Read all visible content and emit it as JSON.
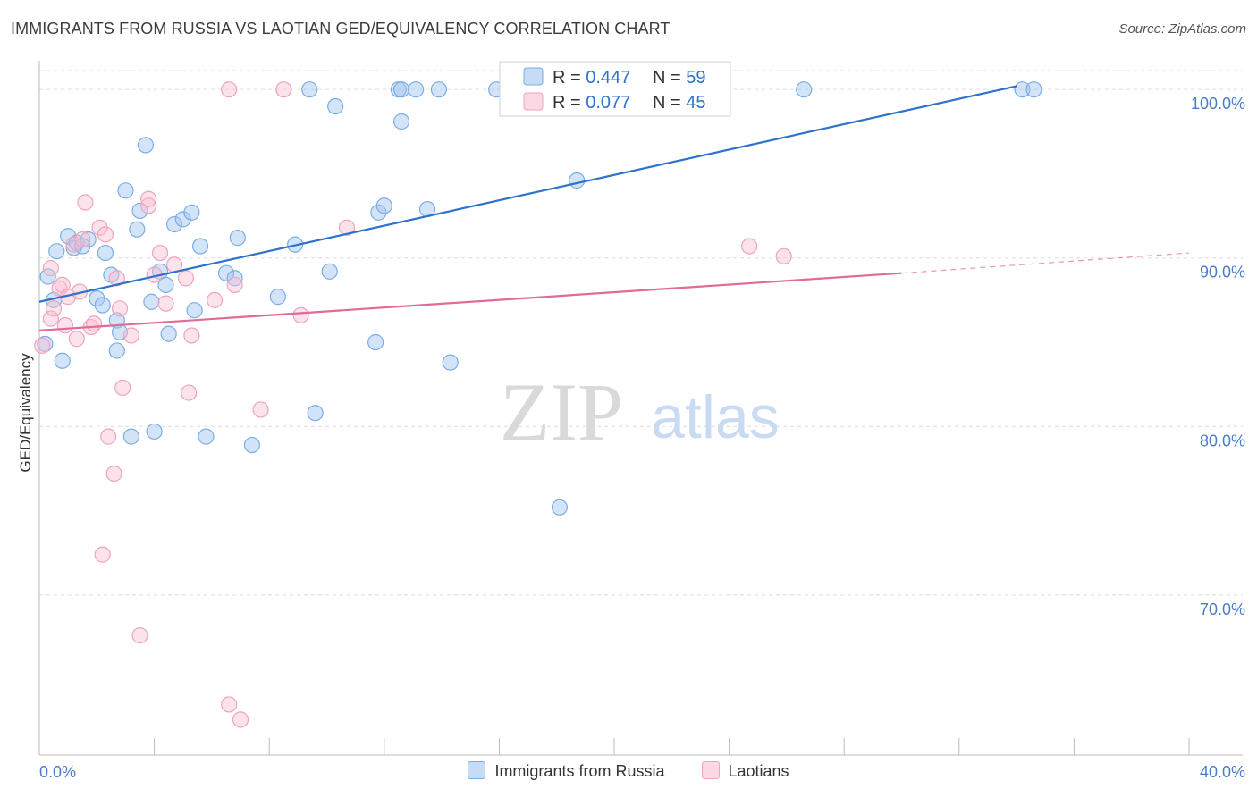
{
  "title": "IMMIGRANTS FROM RUSSIA VS LAOTIAN GED/EQUIVALENCY CORRELATION CHART",
  "source": "Source: ZipAtlas.com",
  "watermark": {
    "part1": "ZIP",
    "part2": "atlas"
  },
  "colors": {
    "blue": "#7aaee3",
    "blue_fill": "rgba(160,196,240,0.45)",
    "blue_line": "#2e72cc",
    "pink": "#eea4bd",
    "pink_fill": "rgba(248,190,210,0.45)",
    "pink_line": "#e06b98",
    "axis_label": "#4a7cc7",
    "grid": "#dddddd"
  },
  "legend": {
    "rows": [
      {
        "r_label": "R = ",
        "r_value": "0.447",
        "n_label": "N = ",
        "n_value": "59",
        "series": "blue"
      },
      {
        "r_label": "R = ",
        "r_value": "0.077",
        "n_label": "N = ",
        "n_value": "45",
        "series": "pink"
      }
    ]
  },
  "bottom_legend": [
    "Immigrants from Russia",
    "Laotians"
  ],
  "chart_data": {
    "type": "scatter",
    "title": "IMMIGRANTS FROM RUSSIA VS LAOTIAN GED/EQUIVALENCY CORRELATION CHART",
    "xlabel": "",
    "ylabel": "GED/Equivalency",
    "xlim": [
      0,
      40
    ],
    "ylim": [
      60.5,
      101.6
    ],
    "x_tick_labels": [
      "0.0%",
      "40.0%"
    ],
    "y_ticks": [
      70,
      80,
      90,
      100
    ],
    "y_tick_labels": [
      "70.0%",
      "80.0%",
      "90.0%",
      "100.0%"
    ],
    "grid": true,
    "legend_position": "top-center",
    "series": [
      {
        "name": "Immigrants from Russia",
        "color": "blue",
        "trend": {
          "x": [
            0,
            34.0
          ],
          "y": [
            87.4,
            100.2
          ]
        },
        "points": [
          [
            0.2,
            84.9
          ],
          [
            0.3,
            88.9
          ],
          [
            0.5,
            87.5
          ],
          [
            0.6,
            90.4
          ],
          [
            0.8,
            83.9
          ],
          [
            1.0,
            91.3
          ],
          [
            1.2,
            90.6
          ],
          [
            1.3,
            90.9
          ],
          [
            1.5,
            90.7
          ],
          [
            1.7,
            91.1
          ],
          [
            2.0,
            87.6
          ],
          [
            2.2,
            87.2
          ],
          [
            2.3,
            90.3
          ],
          [
            2.5,
            89.0
          ],
          [
            2.7,
            86.3
          ],
          [
            2.7,
            84.5
          ],
          [
            2.8,
            85.6
          ],
          [
            3.0,
            94.0
          ],
          [
            3.2,
            79.4
          ],
          [
            3.4,
            91.7
          ],
          [
            3.5,
            92.8
          ],
          [
            3.7,
            96.7
          ],
          [
            3.9,
            87.4
          ],
          [
            4.0,
            79.7
          ],
          [
            4.2,
            89.2
          ],
          [
            4.4,
            88.4
          ],
          [
            4.5,
            85.5
          ],
          [
            4.7,
            92.0
          ],
          [
            5.0,
            92.3
          ],
          [
            5.3,
            92.7
          ],
          [
            5.4,
            86.9
          ],
          [
            5.6,
            90.7
          ],
          [
            5.8,
            79.4
          ],
          [
            6.5,
            89.1
          ],
          [
            6.8,
            88.8
          ],
          [
            6.9,
            91.2
          ],
          [
            7.4,
            78.9
          ],
          [
            8.3,
            87.7
          ],
          [
            8.9,
            90.8
          ],
          [
            9.4,
            100.0
          ],
          [
            9.6,
            80.8
          ],
          [
            10.1,
            89.2
          ],
          [
            10.3,
            99.0
          ],
          [
            11.7,
            85.0
          ],
          [
            11.8,
            92.7
          ],
          [
            12.0,
            93.1
          ],
          [
            12.5,
            100.0
          ],
          [
            12.6,
            100.0
          ],
          [
            12.6,
            98.1
          ],
          [
            13.1,
            100.0
          ],
          [
            13.5,
            92.9
          ],
          [
            13.9,
            100.0
          ],
          [
            14.3,
            83.8
          ],
          [
            15.9,
            100.0
          ],
          [
            18.1,
            75.2
          ],
          [
            18.7,
            94.6
          ],
          [
            26.6,
            100.0
          ],
          [
            34.2,
            100.0
          ],
          [
            34.6,
            100.0
          ]
        ]
      },
      {
        "name": "Laotians",
        "color": "pink",
        "trend": {
          "x": [
            0,
            30.0
          ],
          "y": [
            85.7,
            89.1
          ]
        },
        "trend_dashed": {
          "x": [
            30.0,
            40.0
          ],
          "y": [
            89.1,
            90.3
          ]
        },
        "points": [
          [
            0.1,
            84.8
          ],
          [
            0.4,
            86.4
          ],
          [
            0.4,
            89.4
          ],
          [
            0.5,
            87.0
          ],
          [
            0.7,
            88.2
          ],
          [
            0.8,
            88.4
          ],
          [
            0.9,
            86.0
          ],
          [
            1.0,
            87.7
          ],
          [
            1.2,
            90.8
          ],
          [
            1.3,
            85.2
          ],
          [
            1.4,
            88.0
          ],
          [
            1.5,
            91.1
          ],
          [
            1.6,
            93.3
          ],
          [
            1.8,
            85.9
          ],
          [
            1.9,
            86.1
          ],
          [
            2.1,
            91.8
          ],
          [
            2.3,
            91.4
          ],
          [
            2.4,
            79.4
          ],
          [
            2.6,
            77.2
          ],
          [
            2.7,
            88.8
          ],
          [
            2.8,
            87.0
          ],
          [
            2.9,
            82.3
          ],
          [
            2.2,
            72.4
          ],
          [
            3.2,
            85.4
          ],
          [
            3.5,
            67.6
          ],
          [
            3.8,
            93.1
          ],
          [
            3.8,
            93.5
          ],
          [
            4.0,
            89.0
          ],
          [
            4.2,
            90.3
          ],
          [
            4.4,
            87.3
          ],
          [
            4.7,
            89.6
          ],
          [
            5.1,
            88.8
          ],
          [
            5.2,
            82.0
          ],
          [
            5.3,
            85.4
          ],
          [
            6.1,
            87.5
          ],
          [
            6.6,
            100.0
          ],
          [
            6.6,
            63.5
          ],
          [
            7.0,
            62.6
          ],
          [
            6.8,
            88.4
          ],
          [
            7.7,
            81.0
          ],
          [
            8.5,
            100.0
          ],
          [
            9.1,
            86.6
          ],
          [
            10.7,
            91.8
          ],
          [
            24.7,
            90.7
          ],
          [
            25.9,
            90.1
          ]
        ]
      }
    ]
  }
}
